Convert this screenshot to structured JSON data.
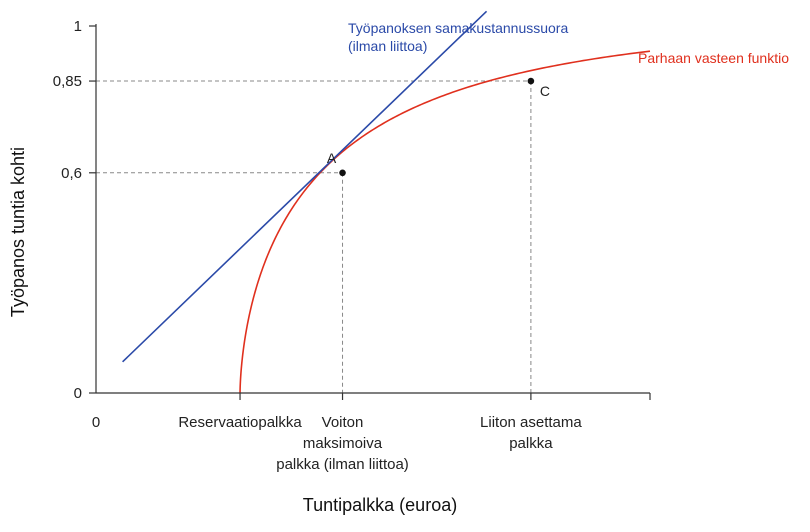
{
  "chart_data": {
    "type": "line",
    "title": "",
    "xlabel": "Tuntipalkka (euroa)",
    "ylabel": "Työpanos tuntia kohti",
    "xlim": [
      0,
      100
    ],
    "ylim": [
      0,
      1
    ],
    "y_ticks": [
      {
        "value": 0,
        "label": "0"
      },
      {
        "value": 0.6,
        "label": "0,6"
      },
      {
        "value": 0.85,
        "label": "0,85"
      },
      {
        "value": 1,
        "label": "1"
      }
    ],
    "x_origin_label": "0",
    "x_categories": [
      {
        "value": 26,
        "lines": [
          "Reservaatiopalkka"
        ]
      },
      {
        "value": 44.5,
        "lines": [
          "Voiton",
          "maksimoiva",
          "palkka (ilman liittoa)"
        ]
      },
      {
        "value": 78.5,
        "lines": [
          "Liiton asettama",
          "palkka"
        ]
      }
    ],
    "series": [
      {
        "name": "Parhaan vasteen funktio",
        "color": "#e0301e",
        "kind": "best_response",
        "x0": 26,
        "anchor": {
          "x": 44.5,
          "y": 0.6
        },
        "x_end": 100
      },
      {
        "name": "Työpanoksen samakustannussuora (ilman liittoa)",
        "color": "#2b4aa8",
        "kind": "isocost",
        "points": [
          {
            "x": 4.8,
            "y": 0.085
          },
          {
            "x": 70.5,
            "y": 1.04
          }
        ]
      }
    ],
    "points": [
      {
        "label": "A",
        "x": 44.5,
        "y": 0.6
      },
      {
        "label": "C",
        "x": 78.5,
        "y": 0.85
      }
    ],
    "labels": {
      "best_response": "Parhaan vasteen funktio",
      "isocost_line1": "Työpanoksen samakustannussuora",
      "isocost_line2": "(ilman liittoa)"
    },
    "colors": {
      "best_response": "#e0301e",
      "isocost": "#2b4aa8",
      "axis": "#333333",
      "guide": "#888888"
    }
  }
}
